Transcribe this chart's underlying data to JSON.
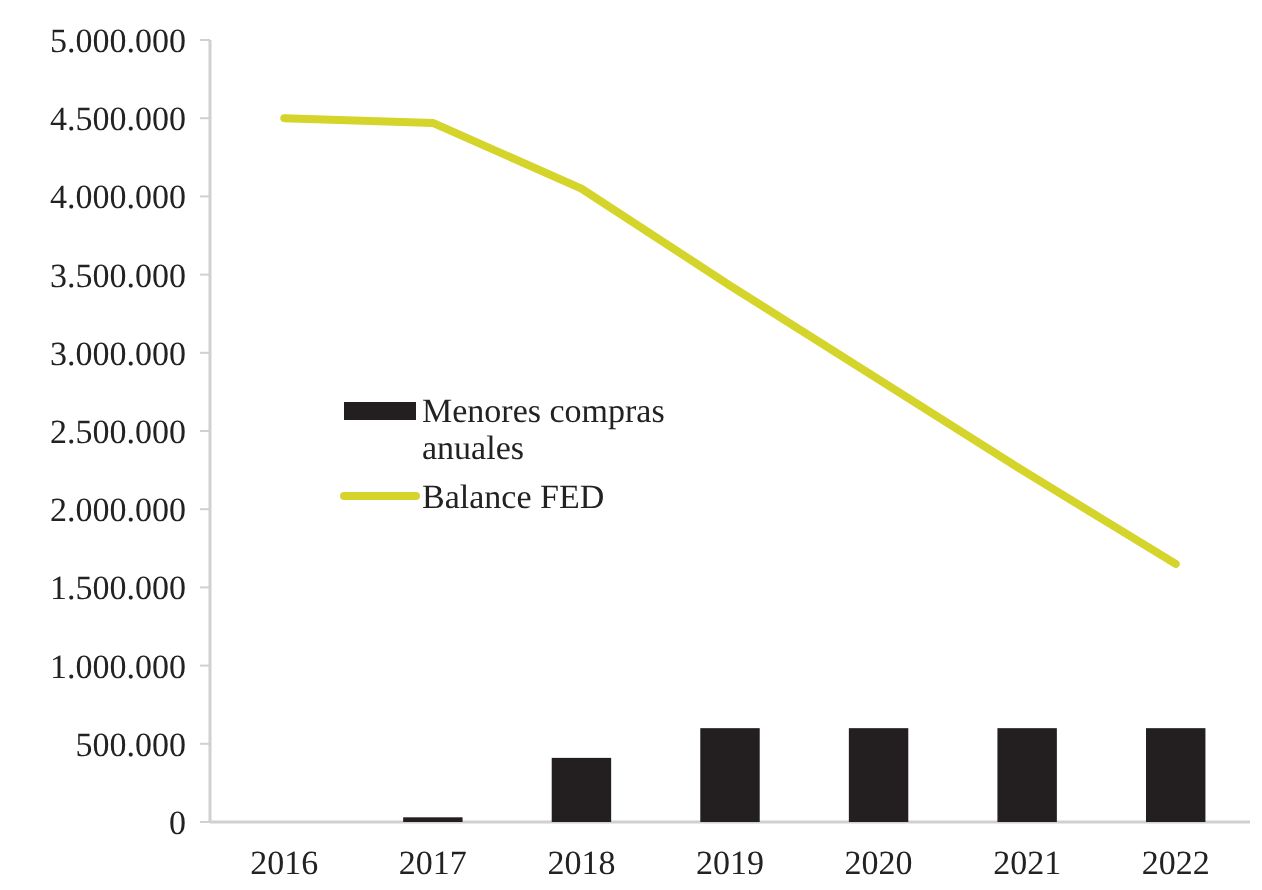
{
  "chart_data": {
    "type": "bar",
    "categories": [
      "2016",
      "2017",
      "2018",
      "2019",
      "2020",
      "2021",
      "2022"
    ],
    "series": [
      {
        "name": "Menores compras anuales",
        "color": "#231f20",
        "values": [
          0,
          30000,
          410000,
          600000,
          600000,
          600000,
          600000
        ]
      },
      {
        "name": "Balance FED",
        "type": "line",
        "color": "#d4d42a",
        "values": [
          4500000,
          4470000,
          4050000,
          3430000,
          2830000,
          2230000,
          1650000
        ]
      }
    ],
    "ylim": [
      0,
      5000000
    ],
    "yticks": [
      {
        "value": 0,
        "label": "0"
      },
      {
        "value": 500000,
        "label": "500.000"
      },
      {
        "value": 1000000,
        "label": "1.000.000"
      },
      {
        "value": 1500000,
        "label": "1.500.000"
      },
      {
        "value": 2000000,
        "label": "2.000.000"
      },
      {
        "value": 2500000,
        "label": "2.500.000"
      },
      {
        "value": 3000000,
        "label": "3.000.000"
      },
      {
        "value": 3500000,
        "label": "3.500.000"
      },
      {
        "value": 4000000,
        "label": "4.000.000"
      },
      {
        "value": 4500000,
        "label": "4.500.000"
      },
      {
        "value": 5000000,
        "label": "5.000.000"
      }
    ],
    "legend": "left",
    "marker": "none",
    "line_style": "solid"
  }
}
